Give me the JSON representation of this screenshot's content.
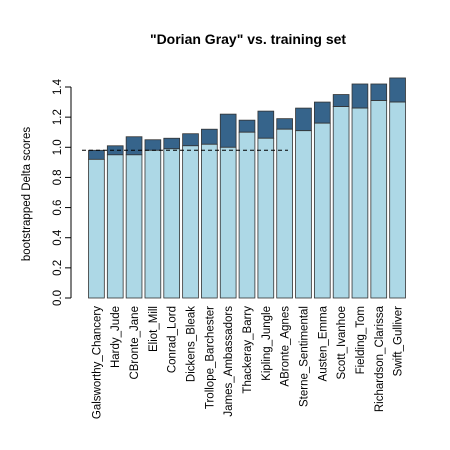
{
  "chart_data": {
    "type": "bar",
    "title": "\"Dorian Gray\" vs. training set",
    "xlabel": "",
    "ylabel": "bootstrapped Delta scores",
    "ylim": [
      0,
      1.4
    ],
    "yticks": [
      "0.0",
      "0.2",
      "0.4",
      "0.6",
      "0.8",
      "1.0",
      "1.2",
      "1.4"
    ],
    "categories": [
      "Galsworthy_Chancery",
      "Hardy_Jude",
      "CBronte_Jane",
      "Eliot_Mill",
      "Conrad_Lord",
      "Dickens_Bleak",
      "Trollope_Barchester",
      "James_Ambassadors",
      "Thackeray_Barry",
      "Kipling_Jungle",
      "ABronte_Agnes",
      "Sterne_Sentimental",
      "Austen_Emma",
      "Scott_Ivanhoe",
      "Fielding_Tom",
      "Richardson_Clarissa",
      "Swift_Gulliver"
    ],
    "series": [
      {
        "values": [
          0.92,
          0.95,
          0.95,
          0.98,
          0.99,
          1.01,
          1.02,
          1.0,
          1.1,
          1.06,
          1.12,
          1.11,
          1.16,
          1.27,
          1.26,
          1.31,
          1.3
        ]
      },
      {
        "values": [
          0.98,
          1.01,
          1.07,
          1.05,
          1.06,
          1.09,
          1.12,
          1.22,
          1.18,
          1.24,
          1.19,
          1.26,
          1.3,
          1.35,
          1.42,
          1.42,
          1.46
        ]
      }
    ],
    "reference_line": {
      "y": 0.98,
      "style": "dashed"
    },
    "colors": {
      "lower": "#add8e6",
      "upper": "#36648b",
      "border": "#333333"
    },
    "grid": false,
    "legend": "none"
  }
}
